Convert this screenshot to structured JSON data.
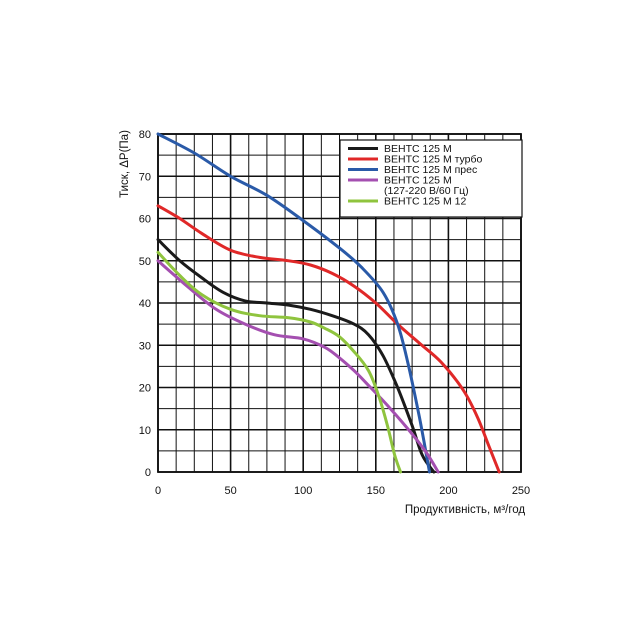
{
  "chart_data": {
    "type": "line",
    "xlabel": "Продуктивність, м³/год",
    "ylabel": "Тиск, ΔP(Па)",
    "xlim": [
      0,
      250
    ],
    "ylim": [
      0,
      80
    ],
    "xticks": [
      0,
      50,
      100,
      150,
      200,
      250
    ],
    "yticks": [
      0,
      10,
      20,
      30,
      40,
      50,
      60,
      70,
      80
    ],
    "grid": true,
    "legend_position": "top-right",
    "series": [
      {
        "name": "ВЕНТС 125 М",
        "color": "#1a1a1a",
        "legend_lines": [
          "ВЕНТС 125 М"
        ],
        "x": [
          0,
          15,
          30,
          45,
          60,
          75,
          90,
          105,
          120,
          135,
          145,
          155,
          165,
          175,
          182,
          190
        ],
        "y": [
          55,
          50,
          46,
          42.5,
          40.5,
          40,
          39.5,
          38.5,
          37,
          35,
          32.5,
          27.5,
          20,
          11,
          4,
          0
        ]
      },
      {
        "name": "ВЕНТС 125 М турбо",
        "color": "#e02828",
        "legend_lines": [
          "ВЕНТС 125 М турбо"
        ],
        "x": [
          0,
          15,
          30,
          50,
          70,
          90,
          105,
          120,
          135,
          150,
          165,
          180,
          195,
          210,
          220,
          228,
          235
        ],
        "y": [
          63,
          60,
          56.5,
          52.5,
          50.8,
          50,
          49,
          47,
          44,
          40,
          35,
          30.5,
          26,
          19.5,
          13,
          6,
          0
        ]
      },
      {
        "name": "ВЕНТС 125 М прес",
        "color": "#2a5aa8",
        "legend_lines": [
          "ВЕНТС 125 М прес"
        ],
        "x": [
          0,
          25,
          50,
          75,
          100,
          125,
          140,
          155,
          165,
          172,
          180,
          187
        ],
        "y": [
          80,
          75.5,
          70,
          65.5,
          59.5,
          53,
          48.5,
          42.5,
          35,
          26,
          13,
          0
        ]
      },
      {
        "name": "ВЕНТС 125 М (127-220 В/60 Гц)",
        "color": "#a44fb0",
        "legend_lines": [
          "ВЕНТС 125 М",
          "(127-220 В/60 Гц)"
        ],
        "x": [
          0,
          20,
          40,
          60,
          80,
          100,
          115,
          125,
          135,
          145,
          160,
          175,
          185,
          193
        ],
        "y": [
          50,
          44,
          38.5,
          35,
          32.5,
          31.5,
          29.5,
          27,
          24,
          20.5,
          15,
          9,
          4.5,
          0
        ]
      },
      {
        "name": "ВЕНТС 125 М 12",
        "color": "#8fc43e",
        "legend_lines": [
          "ВЕНТС 125 М 12"
        ],
        "x": [
          0,
          15,
          30,
          50,
          70,
          90,
          105,
          115,
          125,
          135,
          145,
          152,
          158,
          163,
          167
        ],
        "y": [
          52,
          46.5,
          42,
          38.5,
          37,
          36.5,
          35.5,
          34,
          32,
          28.5,
          24,
          18,
          11,
          4,
          0
        ]
      }
    ]
  }
}
